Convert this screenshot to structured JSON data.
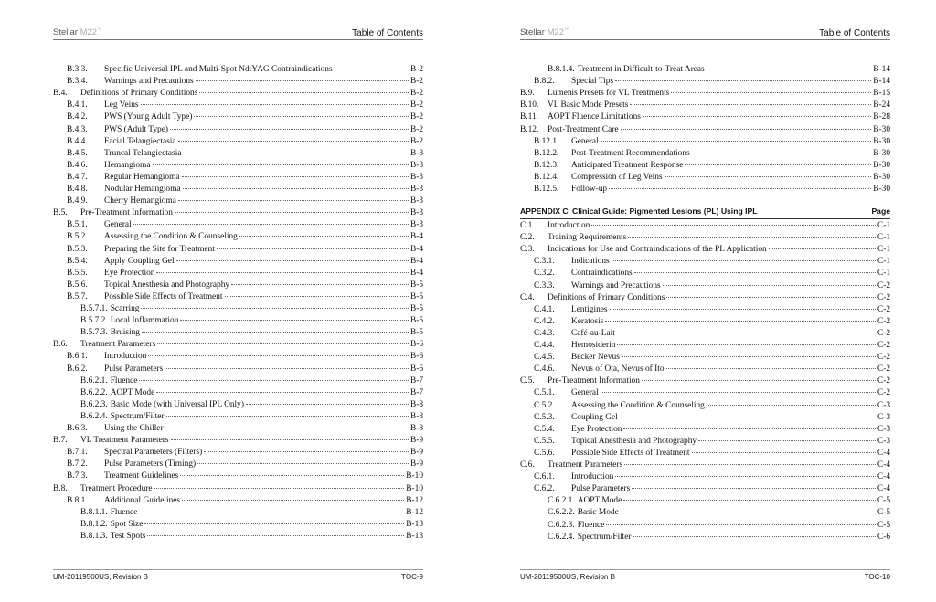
{
  "pages": [
    {
      "header": {
        "brand": "Stellar",
        "model": "M22",
        "tm": "™",
        "title": "Table of Contents"
      },
      "entries": [
        {
          "level": 2,
          "num": "B.3.3.",
          "title": "Specific Universal IPL and Multi-Spot Nd:YAG Contraindications",
          "page": "B-2"
        },
        {
          "level": 2,
          "num": "B.3.4.",
          "title": "Warnings and Precautions",
          "page": "B-2"
        },
        {
          "level": 1,
          "num": "B.4.",
          "title": "Definitions of Primary Conditions",
          "page": "B-2"
        },
        {
          "level": 2,
          "num": "B.4.1.",
          "title": "Leg Veins",
          "page": "B-2"
        },
        {
          "level": 2,
          "num": "B.4.2.",
          "title": "PWS (Young Adult Type)",
          "page": "B-2"
        },
        {
          "level": 2,
          "num": "B.4.3.",
          "title": "PWS (Adult Type)",
          "page": "B-2"
        },
        {
          "level": 2,
          "num": "B.4.4.",
          "title": "Facial Telangiectasia",
          "page": "B-2"
        },
        {
          "level": 2,
          "num": "B.4.5.",
          "title": "Truncal Telangiectasia",
          "page": "B-3"
        },
        {
          "level": 2,
          "num": "B.4.6.",
          "title": "Hemangioma",
          "page": "B-3"
        },
        {
          "level": 2,
          "num": "B.4.7.",
          "title": "Regular Hemangioma",
          "page": "B-3"
        },
        {
          "level": 2,
          "num": "B.4.8.",
          "title": "Nodular Hemangioma",
          "page": "B-3"
        },
        {
          "level": 2,
          "num": "B.4.9.",
          "title": "Cherry Hemangioma",
          "page": "B-3"
        },
        {
          "level": 1,
          "num": "B.5.",
          "title": "Pre-Treatment Information",
          "page": "B-3"
        },
        {
          "level": 2,
          "num": "B.5.1.",
          "title": "General",
          "page": "B-3"
        },
        {
          "level": 2,
          "num": "B.5.2.",
          "title": "Assessing the Condition & Counseling",
          "page": "B-4"
        },
        {
          "level": 2,
          "num": "B.5.3.",
          "title": "Preparing the Site for Treatment",
          "page": "B-4"
        },
        {
          "level": 2,
          "num": "B.5.4.",
          "title": "Apply Coupling Gel",
          "page": "B-4"
        },
        {
          "level": 2,
          "num": "B.5.5.",
          "title": "Eye Protection",
          "page": "B-4"
        },
        {
          "level": 2,
          "num": "B.5.6.",
          "title": "Topical Anesthesia and Photography",
          "page": "B-5"
        },
        {
          "level": 2,
          "num": "B.5.7.",
          "title": "Possible Side Effects of Treatment",
          "page": "B-5"
        },
        {
          "level": 3,
          "num": "B.5.7.1.",
          "title": "Scarring",
          "page": "B-5"
        },
        {
          "level": 3,
          "num": "B.5.7.2.",
          "title": "Local Inflammation",
          "page": "B-5"
        },
        {
          "level": 3,
          "num": "B.5.7.3.",
          "title": "Bruising",
          "page": "B-5"
        },
        {
          "level": 1,
          "num": "B.6.",
          "title": "Treatment Parameters",
          "page": "B-6"
        },
        {
          "level": 2,
          "num": "B.6.1.",
          "title": "Introduction",
          "page": "B-6"
        },
        {
          "level": 2,
          "num": "B.6.2.",
          "title": "Pulse Parameters",
          "page": "B-6"
        },
        {
          "level": 3,
          "num": "B.6.2.1.",
          "title": "Fluence",
          "page": "B-7"
        },
        {
          "level": 3,
          "num": "B.6.2.2.",
          "title": "AOPT Mode",
          "page": "B-7"
        },
        {
          "level": 3,
          "num": "B.6.2.3.",
          "title": "Basic Mode (with Universal IPL Only)",
          "page": "B-8"
        },
        {
          "level": 3,
          "num": "B.6.2.4.",
          "title": "Spectrum/Filter",
          "page": "B-8"
        },
        {
          "level": 2,
          "num": "B.6.3.",
          "title": "Using the Chiller",
          "page": "B-8"
        },
        {
          "level": 1,
          "num": "B.7.",
          "title": "VL Treatment Parameters",
          "page": "B-9"
        },
        {
          "level": 2,
          "num": "B.7.1.",
          "title": "Spectral Parameters (Filters)",
          "page": "B-9"
        },
        {
          "level": 2,
          "num": "B.7.2.",
          "title": "Pulse Parameters (Timing)",
          "page": "B-9"
        },
        {
          "level": 2,
          "num": "B.7.3.",
          "title": "Treatment Guidelines",
          "page": "B-10"
        },
        {
          "level": 1,
          "num": "B.8.",
          "title": "Treatment Procedure",
          "page": "B-10"
        },
        {
          "level": 2,
          "num": "B.8.1.",
          "title": "Additional Guidelines",
          "page": "B-12"
        },
        {
          "level": 3,
          "num": "B.8.1.1.",
          "title": "Fluence",
          "page": "B-12"
        },
        {
          "level": 3,
          "num": "B.8.1.2.",
          "title": "Spot Size",
          "page": "B-13"
        },
        {
          "level": 3,
          "num": "B.8.1.3.",
          "title": "Test Spots",
          "page": "B-13"
        }
      ],
      "footer": {
        "doc": "UM-20119500US, Revision B",
        "page": "TOC-9"
      }
    },
    {
      "header": {
        "brand": "Stellar",
        "model": "M22",
        "tm": "™",
        "title": "Table of Contents"
      },
      "entries": [
        {
          "level": 3,
          "num": "B.8.1.4.",
          "title": "Treatment in Difficult-to-Treat Areas",
          "page": "B-14"
        },
        {
          "level": 2,
          "num": "B.8.2.",
          "title": "Special Tips",
          "page": "B-14"
        },
        {
          "level": 1,
          "num": "B.9.",
          "title": "Lumenis Presets for VL Treatments",
          "page": "B-15"
        },
        {
          "level": 1,
          "num": "B.10.",
          "title": "VL Basic Mode Presets",
          "page": "B-24"
        },
        {
          "level": 1,
          "num": "B.11.",
          "title": "AOPT Fluence Limitations",
          "page": "B-28"
        },
        {
          "level": 1,
          "num": "B.12.",
          "title": "Post-Treatment Care",
          "page": "B-30"
        },
        {
          "level": 2,
          "num": "B.12.1.",
          "title": "General",
          "page": "B-30"
        },
        {
          "level": 2,
          "num": "B.12.2.",
          "title": "Post-Treatment Recommendations",
          "page": "B-30"
        },
        {
          "level": 2,
          "num": "B.12.3.",
          "title": "Anticipated Treatment Response",
          "page": "B-30"
        },
        {
          "level": 2,
          "num": "B.12.4.",
          "title": "Compression of Leg Veins",
          "page": "B-30"
        },
        {
          "level": 2,
          "num": "B.12.5.",
          "title": "Follow-up",
          "page": "B-30"
        }
      ],
      "appendix": {
        "label": "APPENDIX C",
        "title": "Clinical Guide: Pigmented Lesions (PL) Using IPL",
        "page_label": "Page"
      },
      "appendix_entries": [
        {
          "level": 1,
          "num": "C.1.",
          "title": "Introduction",
          "page": "C-1"
        },
        {
          "level": 1,
          "num": "C.2.",
          "title": "Training Requirements",
          "page": "C-1"
        },
        {
          "level": 1,
          "num": "C.3.",
          "title": "Indications for Use and Contraindications of the PL Application",
          "page": "C-1"
        },
        {
          "level": 2,
          "num": "C.3.1.",
          "title": "Indications",
          "page": "C-1"
        },
        {
          "level": 2,
          "num": "C.3.2.",
          "title": "Contraindications",
          "page": "C-1"
        },
        {
          "level": 2,
          "num": "C.3.3.",
          "title": "Warnings and Precautions",
          "page": "C-2"
        },
        {
          "level": 1,
          "num": "C.4.",
          "title": "Definitions of Primary Conditions",
          "page": "C-2"
        },
        {
          "level": 2,
          "num": "C.4.1.",
          "title": "Lentigines",
          "page": "C-2"
        },
        {
          "level": 2,
          "num": "C.4.2.",
          "title": "Keratosis",
          "page": "C-2"
        },
        {
          "level": 2,
          "num": "C.4.3.",
          "title": "Café-au-Lait",
          "page": "C-2"
        },
        {
          "level": 2,
          "num": "C.4.4.",
          "title": "Hemosiderin",
          "page": "C-2"
        },
        {
          "level": 2,
          "num": "C.4.5.",
          "title": "Becker Nevus",
          "page": "C-2"
        },
        {
          "level": 2,
          "num": "C.4.6.",
          "title": "Nevus of Ota, Nevus of Ito",
          "page": "C-2"
        },
        {
          "level": 1,
          "num": "C.5.",
          "title": "Pre-Treatment Information",
          "page": "C-2"
        },
        {
          "level": 2,
          "num": "C.5.1.",
          "title": "General",
          "page": "C-2"
        },
        {
          "level": 2,
          "num": "C.5.2.",
          "title": "Assessing the Condition & Counseling",
          "page": "C-3"
        },
        {
          "level": 2,
          "num": "C.5.3.",
          "title": "Coupling Gel",
          "page": "C-3"
        },
        {
          "level": 2,
          "num": "C.5.4.",
          "title": "Eye Protection",
          "page": "C-3"
        },
        {
          "level": 2,
          "num": "C.5.5.",
          "title": "Topical Anesthesia and Photography",
          "page": "C-3"
        },
        {
          "level": 2,
          "num": "C.5.6.",
          "title": "Possible Side Effects of Treatment",
          "page": "C-4"
        },
        {
          "level": 1,
          "num": "C.6.",
          "title": "Treatment Parameters",
          "page": "C-4"
        },
        {
          "level": 2,
          "num": "C.6.1.",
          "title": "Introduction",
          "page": "C-4"
        },
        {
          "level": 2,
          "num": "C.6.2.",
          "title": "Pulse Parameters",
          "page": "C-4"
        },
        {
          "level": 3,
          "num": "C.6.2.1.",
          "title": "AOPT Mode",
          "page": "C-5"
        },
        {
          "level": 3,
          "num": "C.6.2.2.",
          "title": "Basic Mode",
          "page": "C-5"
        },
        {
          "level": 3,
          "num": "C.6.2.3.",
          "title": "Fluence",
          "page": "C-5"
        },
        {
          "level": 3,
          "num": "C.6.2.4.",
          "title": "Spectrum/Filter",
          "page": "C-6"
        }
      ],
      "footer": {
        "doc": "UM-20119500US, Revision B",
        "page": "TOC-10"
      }
    }
  ]
}
